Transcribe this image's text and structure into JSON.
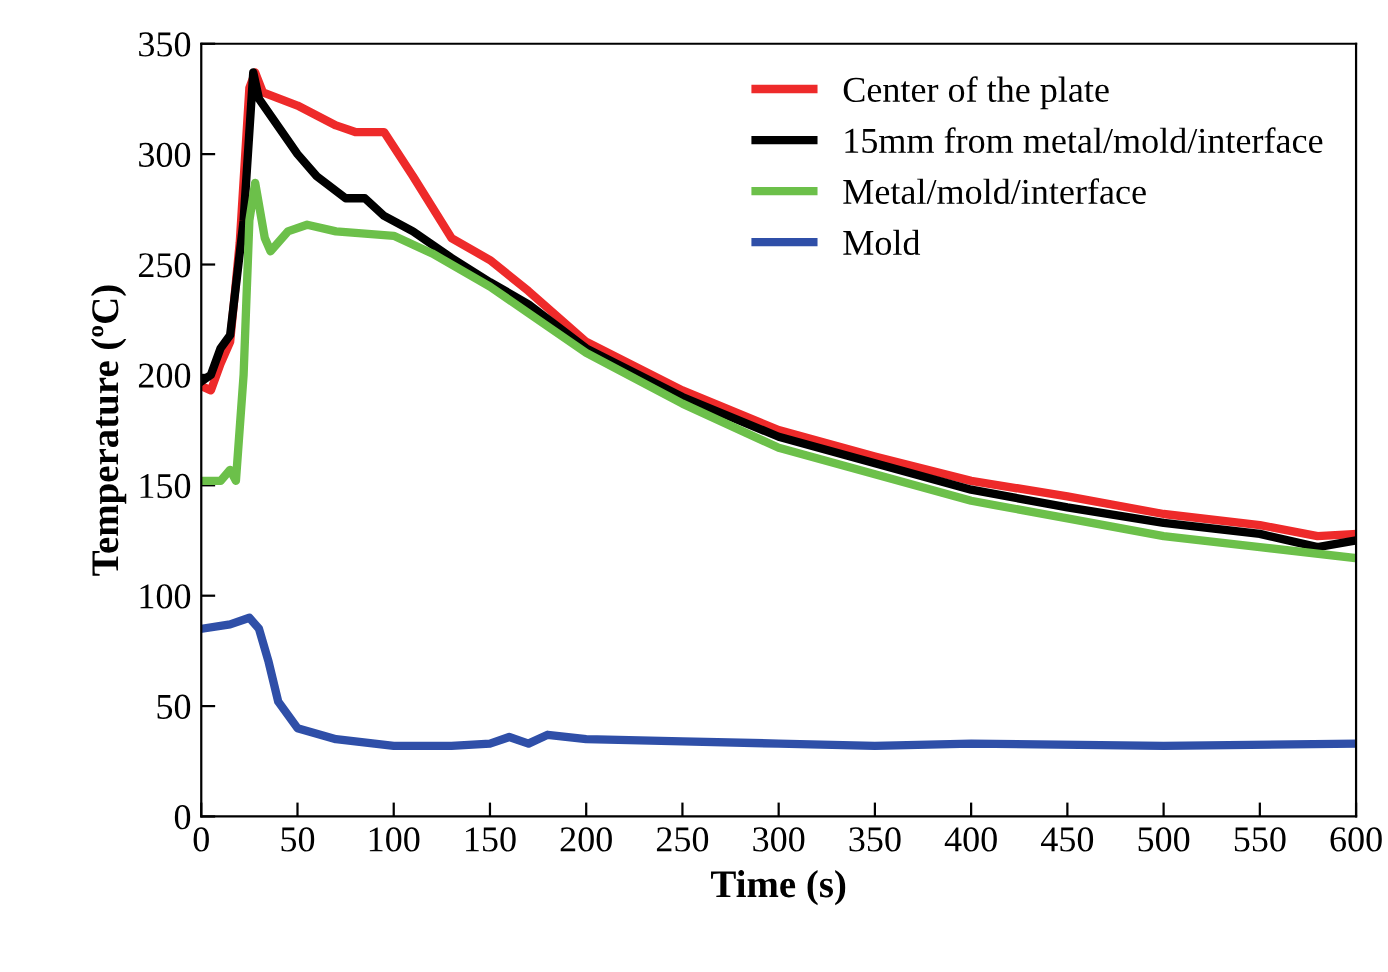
{
  "chart_data": {
    "type": "line",
    "xlabel": "Time (s)",
    "ylabel": "Temperature (ºC)",
    "xlim": [
      0,
      600
    ],
    "ylim": [
      0,
      350
    ],
    "xticks": [
      0,
      50,
      100,
      150,
      200,
      250,
      300,
      350,
      400,
      450,
      500,
      550,
      600
    ],
    "yticks": [
      0,
      50,
      100,
      150,
      200,
      250,
      300,
      350
    ],
    "grid": false,
    "legend": "top right",
    "marker": "none",
    "line_style": "solid",
    "series": [
      {
        "name": "Center of the plate",
        "color": "#ee2a2a",
        "x": [
          0,
          5,
          10,
          15,
          20,
          25,
          28,
          32,
          50,
          70,
          80,
          95,
          110,
          130,
          150,
          170,
          200,
          250,
          300,
          350,
          400,
          450,
          500,
          550,
          580,
          600
        ],
        "values": [
          195,
          193,
          205,
          215,
          260,
          330,
          337,
          328,
          322,
          313,
          310,
          310,
          290,
          262,
          252,
          238,
          215,
          193,
          175,
          163,
          152,
          145,
          137,
          132,
          127,
          128
        ]
      },
      {
        "name": "15mm from metal/mold/interface",
        "color": "#000000",
        "x": [
          0,
          5,
          10,
          15,
          22,
          27,
          30,
          50,
          60,
          75,
          85,
          95,
          110,
          130,
          150,
          170,
          200,
          250,
          300,
          350,
          400,
          450,
          500,
          550,
          580,
          600
        ],
        "values": [
          197,
          200,
          212,
          218,
          270,
          337,
          325,
          300,
          290,
          280,
          280,
          272,
          265,
          253,
          242,
          232,
          212,
          190,
          172,
          160,
          148,
          140,
          133,
          128,
          122,
          125
        ]
      },
      {
        "name": "Metal/mold/interface",
        "color": "#6cc04a",
        "x": [
          0,
          10,
          15,
          18,
          22,
          25,
          28,
          33,
          36,
          45,
          55,
          70,
          100,
          120,
          150,
          170,
          200,
          250,
          300,
          350,
          400,
          450,
          500,
          550,
          600
        ],
        "values": [
          152,
          152,
          157,
          152,
          200,
          270,
          287,
          262,
          256,
          265,
          268,
          265,
          263,
          255,
          240,
          228,
          210,
          187,
          167,
          155,
          143,
          135,
          127,
          122,
          117
        ]
      },
      {
        "name": "Mold",
        "color": "#2f4fa8",
        "x": [
          0,
          15,
          25,
          30,
          35,
          40,
          50,
          70,
          100,
          130,
          150,
          160,
          170,
          180,
          200,
          250,
          300,
          350,
          400,
          500,
          600
        ],
        "values": [
          85,
          87,
          90,
          85,
          70,
          52,
          40,
          35,
          32,
          32,
          33,
          36,
          33,
          37,
          35,
          34,
          33,
          32,
          33,
          32,
          33
        ]
      }
    ]
  }
}
